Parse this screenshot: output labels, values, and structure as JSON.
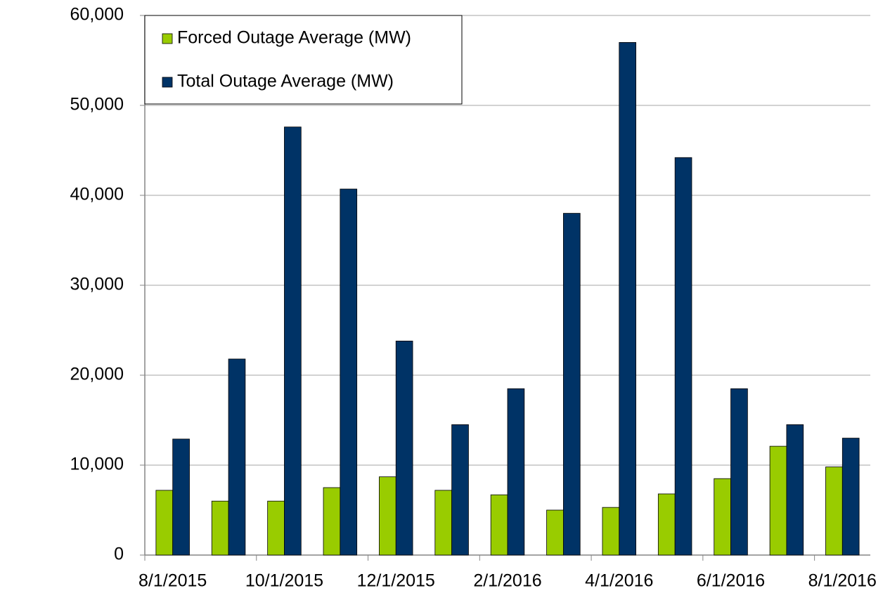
{
  "chart_data": {
    "type": "bar",
    "categories": [
      "8/1/2015",
      null,
      "10/1/2015",
      null,
      "12/1/2015",
      null,
      "2/1/2016",
      null,
      "4/1/2016",
      null,
      "6/1/2016",
      null,
      "8/1/2016"
    ],
    "series": [
      {
        "name": "Forced Outage Average (MW)",
        "color": "#99cc00",
        "values": [
          7200,
          6000,
          6000,
          7500,
          8700,
          7200,
          6700,
          5000,
          5300,
          6800,
          8500,
          12100,
          9800
        ]
      },
      {
        "name": "Total Outage Average (MW)",
        "color": "#003366",
        "values": [
          12900,
          21800,
          47600,
          40700,
          23800,
          14500,
          18500,
          38000,
          57000,
          44200,
          18500,
          14500,
          13000
        ]
      }
    ],
    "ylim": [
      0,
      60000
    ],
    "yticks": [
      0,
      {
        "value": 10000,
        "label": "10,000"
      },
      {
        "value": 20000,
        "label": "20,000"
      },
      {
        "value": 30000,
        "label": "30,000"
      },
      {
        "value": 40000,
        "label": "40,000"
      },
      {
        "value": 50000,
        "label": "50,000"
      },
      {
        "value": 60000,
        "label": "60,000"
      }
    ],
    "grid": true,
    "legend": "top-left"
  }
}
